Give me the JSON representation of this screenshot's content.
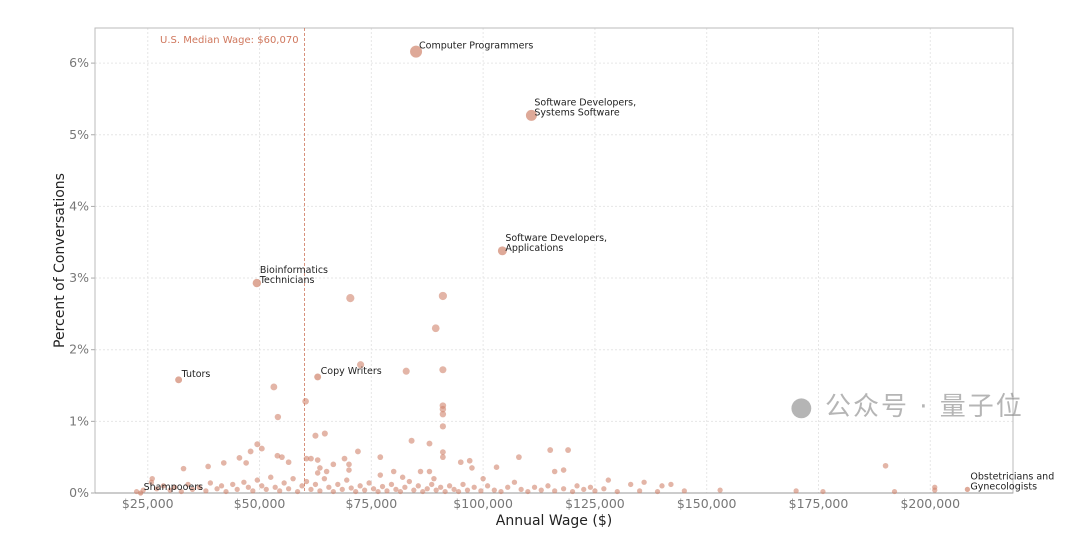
{
  "chart_data": {
    "type": "scatter",
    "xlabel": "Annual Wage ($)",
    "ylabel": "Percent of Conversations",
    "xlim": [
      13200,
      218500
    ],
    "ylim": [
      0,
      6.49
    ],
    "x_ticks": [
      25000,
      50000,
      75000,
      100000,
      125000,
      150000,
      175000,
      200000
    ],
    "x_tick_labels": [
      "$25,000",
      "$50,000",
      "$75,000",
      "$100,000",
      "$125,000",
      "$150,000",
      "$175,000",
      "$200,000"
    ],
    "y_ticks": [
      0,
      1,
      2,
      3,
      4,
      5,
      6
    ],
    "y_tick_labels": [
      "0%",
      "1%",
      "2%",
      "3%",
      "4%",
      "5%",
      "6%"
    ],
    "grid": true,
    "point_color": "#d0846c",
    "reference_line": {
      "x": 60070,
      "label": "U.S. Median Wage: $60,070",
      "color": "#d0785e"
    },
    "labeled_points": [
      {
        "lines": [
          "Computer Programmers"
        ],
        "x": 85000,
        "y": 6.16
      },
      {
        "lines": [
          "Software Developers,",
          "Systems Software"
        ],
        "x": 110800,
        "y": 5.27
      },
      {
        "lines": [
          "Software Developers,",
          "Applications"
        ],
        "x": 104300,
        "y": 3.38
      },
      {
        "lines": [
          "Bioinformatics",
          "Technicians"
        ],
        "x": 49400,
        "y": 2.93
      },
      {
        "lines": [
          "Tutors"
        ],
        "x": 31900,
        "y": 1.58
      },
      {
        "lines": [
          "Copy Writers"
        ],
        "x": 63000,
        "y": 1.62
      },
      {
        "lines": [
          "Shampooers"
        ],
        "x": 23400,
        "y": 0.0
      },
      {
        "lines": [
          "Obstetricians and",
          "Gynecologists"
        ],
        "x": 208300,
        "y": 0.05
      }
    ],
    "points": [
      [
        70300,
        2.72
      ],
      [
        91000,
        2.75
      ],
      [
        89400,
        2.3
      ],
      [
        72600,
        1.79
      ],
      [
        82800,
        1.7
      ],
      [
        91000,
        1.72
      ],
      [
        53200,
        1.48
      ],
      [
        60300,
        1.28
      ],
      [
        54100,
        1.06
      ],
      [
        91000,
        1.22
      ],
      [
        91000,
        1.17
      ],
      [
        91000,
        1.1
      ],
      [
        91000,
        0.93
      ],
      [
        91000,
        0.57
      ],
      [
        91000,
        0.5
      ],
      [
        62500,
        0.8
      ],
      [
        64600,
        0.83
      ],
      [
        84000,
        0.73
      ],
      [
        88000,
        0.69
      ],
      [
        49500,
        0.68
      ],
      [
        50500,
        0.62
      ],
      [
        48000,
        0.58
      ],
      [
        45500,
        0.49
      ],
      [
        47000,
        0.42
      ],
      [
        42000,
        0.42
      ],
      [
        38500,
        0.37
      ],
      [
        33000,
        0.34
      ],
      [
        26000,
        0.2
      ],
      [
        25800,
        0.15
      ],
      [
        54000,
        0.52
      ],
      [
        55000,
        0.5
      ],
      [
        56500,
        0.43
      ],
      [
        60500,
        0.48
      ],
      [
        61500,
        0.48
      ],
      [
        63000,
        0.46
      ],
      [
        63500,
        0.35
      ],
      [
        63000,
        0.28
      ],
      [
        65000,
        0.3
      ],
      [
        66500,
        0.4
      ],
      [
        69000,
        0.48
      ],
      [
        70000,
        0.4
      ],
      [
        70000,
        0.32
      ],
      [
        72000,
        0.58
      ],
      [
        77000,
        0.5
      ],
      [
        77000,
        0.25
      ],
      [
        80000,
        0.3
      ],
      [
        82000,
        0.22
      ],
      [
        86000,
        0.3
      ],
      [
        88000,
        0.3
      ],
      [
        89000,
        0.2
      ],
      [
        95000,
        0.43
      ],
      [
        97000,
        0.45
      ],
      [
        97500,
        0.35
      ],
      [
        100000,
        0.2
      ],
      [
        103000,
        0.36
      ],
      [
        108000,
        0.5
      ],
      [
        115000,
        0.6
      ],
      [
        119000,
        0.6
      ],
      [
        116000,
        0.3
      ],
      [
        118000,
        0.32
      ],
      [
        121000,
        0.1
      ],
      [
        124000,
        0.08
      ],
      [
        128000,
        0.18
      ],
      [
        133000,
        0.12
      ],
      [
        136000,
        0.15
      ],
      [
        140000,
        0.1
      ],
      [
        142000,
        0.12
      ],
      [
        153000,
        0.04
      ],
      [
        190000,
        0.38
      ],
      [
        201000,
        0.08
      ],
      [
        201000,
        0.04
      ],
      [
        192000,
        0.02
      ],
      [
        176000,
        0.02
      ],
      [
        170000,
        0.03
      ],
      [
        22500,
        0.02
      ],
      [
        24000,
        0.04
      ],
      [
        27000,
        0.06
      ],
      [
        28500,
        0.1
      ],
      [
        30000,
        0.04
      ],
      [
        31000,
        0.08
      ],
      [
        32500,
        0.02
      ],
      [
        34000,
        0.12
      ],
      [
        35000,
        0.05
      ],
      [
        36500,
        0.08
      ],
      [
        38000,
        0.03
      ],
      [
        39000,
        0.14
      ],
      [
        40500,
        0.06
      ],
      [
        41500,
        0.1
      ],
      [
        42500,
        0.02
      ],
      [
        44000,
        0.12
      ],
      [
        45000,
        0.05
      ],
      [
        46500,
        0.15
      ],
      [
        47500,
        0.08
      ],
      [
        48500,
        0.03
      ],
      [
        49500,
        0.18
      ],
      [
        50500,
        0.1
      ],
      [
        51500,
        0.05
      ],
      [
        52500,
        0.22
      ],
      [
        53500,
        0.08
      ],
      [
        54500,
        0.03
      ],
      [
        55500,
        0.14
      ],
      [
        56500,
        0.06
      ],
      [
        57500,
        0.2
      ],
      [
        58500,
        0.02
      ],
      [
        59500,
        0.1
      ],
      [
        60500,
        0.16
      ],
      [
        61500,
        0.05
      ],
      [
        62500,
        0.12
      ],
      [
        63500,
        0.03
      ],
      [
        64500,
        0.2
      ],
      [
        65500,
        0.08
      ],
      [
        66500,
        0.02
      ],
      [
        67500,
        0.12
      ],
      [
        68500,
        0.05
      ],
      [
        69500,
        0.18
      ],
      [
        70500,
        0.07
      ],
      [
        71500,
        0.02
      ],
      [
        72500,
        0.1
      ],
      [
        73500,
        0.04
      ],
      [
        74500,
        0.14
      ],
      [
        75500,
        0.06
      ],
      [
        76500,
        0.02
      ],
      [
        77500,
        0.09
      ],
      [
        78500,
        0.03
      ],
      [
        79500,
        0.12
      ],
      [
        80500,
        0.05
      ],
      [
        81500,
        0.02
      ],
      [
        82500,
        0.08
      ],
      [
        83500,
        0.16
      ],
      [
        84500,
        0.04
      ],
      [
        85500,
        0.1
      ],
      [
        86500,
        0.02
      ],
      [
        87500,
        0.06
      ],
      [
        88500,
        0.12
      ],
      [
        89500,
        0.04
      ],
      [
        90500,
        0.08
      ],
      [
        91500,
        0.02
      ],
      [
        92500,
        0.1
      ],
      [
        93500,
        0.05
      ],
      [
        94500,
        0.02
      ],
      [
        95500,
        0.12
      ],
      [
        96500,
        0.04
      ],
      [
        98000,
        0.08
      ],
      [
        99500,
        0.03
      ],
      [
        101000,
        0.1
      ],
      [
        102500,
        0.04
      ],
      [
        104000,
        0.02
      ],
      [
        105500,
        0.08
      ],
      [
        107000,
        0.15
      ],
      [
        108500,
        0.05
      ],
      [
        110000,
        0.02
      ],
      [
        111500,
        0.08
      ],
      [
        113000,
        0.04
      ],
      [
        114500,
        0.1
      ],
      [
        116000,
        0.03
      ],
      [
        118000,
        0.06
      ],
      [
        120000,
        0.02
      ],
      [
        122500,
        0.05
      ],
      [
        125000,
        0.03
      ],
      [
        127000,
        0.06
      ],
      [
        130000,
        0.02
      ],
      [
        135000,
        0.03
      ],
      [
        139000,
        0.02
      ],
      [
        145000,
        0.03
      ]
    ]
  },
  "watermark": {
    "text": "公众号 · 量子位",
    "icon": "wechat-icon"
  }
}
